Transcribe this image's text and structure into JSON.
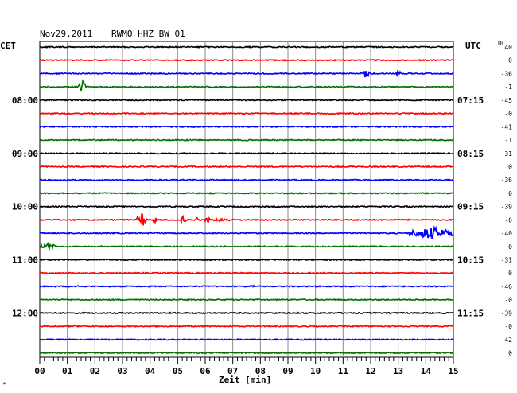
{
  "header": {
    "date": "Nov29,2011",
    "station": "RWMO HHZ BW 01",
    "left_tz": "CET",
    "right_tz": "UTC",
    "offset_header": "DC"
  },
  "footer": {
    "xlabel": "Zeit [min]",
    "corner_mark": "*"
  },
  "chart_data": {
    "type": "line",
    "title": "",
    "xlabel": "Zeit [min]",
    "x_ticks": [
      "00",
      "01",
      "02",
      "03",
      "04",
      "05",
      "06",
      "07",
      "08",
      "09",
      "10",
      "11",
      "12",
      "13",
      "14",
      "15"
    ],
    "xlim": [
      0,
      15
    ],
    "grid": true,
    "trace_colors": [
      "#000000",
      "#ff0000",
      "#0000ff",
      "#007000"
    ],
    "rows": [
      {
        "offset": "40",
        "cet": "",
        "utc": "",
        "events": []
      },
      {
        "offset": "0",
        "cet": "",
        "utc": "",
        "events": []
      },
      {
        "offset": "-36",
        "cet": "",
        "utc": "",
        "events": [
          {
            "start": 11.6,
            "end": 12.0,
            "amp": 5
          },
          {
            "start": 12.9,
            "end": 13.1,
            "amp": 4
          }
        ]
      },
      {
        "offset": "-1",
        "cet": "",
        "utc": "",
        "events": [
          {
            "start": 1.4,
            "end": 1.7,
            "amp": 8
          }
        ]
      },
      {
        "offset": "-45",
        "cet": "08:00",
        "utc": "07:15",
        "events": []
      },
      {
        "offset": "-0",
        "cet": "",
        "utc": "",
        "events": []
      },
      {
        "offset": "-41",
        "cet": "",
        "utc": "",
        "events": []
      },
      {
        "offset": "-1",
        "cet": "",
        "utc": "",
        "events": []
      },
      {
        "offset": "-31",
        "cet": "09:00",
        "utc": "08:15",
        "events": []
      },
      {
        "offset": "0",
        "cet": "",
        "utc": "",
        "events": []
      },
      {
        "offset": "-36",
        "cet": "",
        "utc": "",
        "events": []
      },
      {
        "offset": "0",
        "cet": "",
        "utc": "",
        "events": []
      },
      {
        "offset": "-39",
        "cet": "10:00",
        "utc": "09:15",
        "events": []
      },
      {
        "offset": "-0",
        "cet": "",
        "utc": "",
        "events": [
          {
            "start": 3.5,
            "end": 3.9,
            "amp": 9
          },
          {
            "start": 4.1,
            "end": 4.25,
            "amp": 5
          },
          {
            "start": 5.1,
            "end": 5.3,
            "amp": 5
          },
          {
            "start": 5.6,
            "end": 5.75,
            "amp": 4
          },
          {
            "start": 6.0,
            "end": 6.15,
            "amp": 5
          },
          {
            "start": 6.3,
            "end": 6.9,
            "amp": 3
          }
        ]
      },
      {
        "offset": "-40",
        "cet": "",
        "utc": "",
        "events": [
          {
            "start": 13.4,
            "end": 15.0,
            "amp": 8
          }
        ]
      },
      {
        "offset": "0",
        "cet": "",
        "utc": "",
        "events": [
          {
            "start": 0.0,
            "end": 0.6,
            "amp": 4
          }
        ]
      },
      {
        "offset": "-31",
        "cet": "11:00",
        "utc": "10:15",
        "events": []
      },
      {
        "offset": "0",
        "cet": "",
        "utc": "",
        "events": []
      },
      {
        "offset": "-46",
        "cet": "",
        "utc": "",
        "events": [
          {
            "start": 1.2,
            "end": 1.5,
            "amp": 2
          },
          {
            "start": 7.6,
            "end": 7.8,
            "amp": 2
          }
        ]
      },
      {
        "offset": "-0",
        "cet": "",
        "utc": "",
        "events": []
      },
      {
        "offset": "-39",
        "cet": "12:00",
        "utc": "11:15",
        "events": []
      },
      {
        "offset": "-0",
        "cet": "",
        "utc": "",
        "events": []
      },
      {
        "offset": "-42",
        "cet": "",
        "utc": "",
        "events": []
      },
      {
        "offset": "0",
        "cet": "",
        "utc": "",
        "events": []
      }
    ]
  }
}
